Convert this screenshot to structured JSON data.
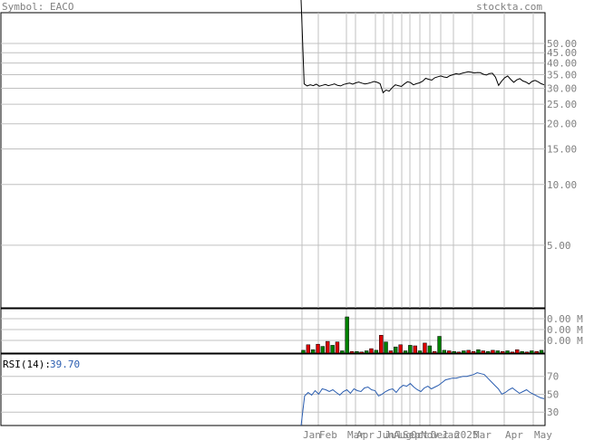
{
  "header": {
    "symbol_label": "Symbol: EACO",
    "site": "stockta.com"
  },
  "colors": {
    "background": "#ffffff",
    "frame": "#000000",
    "grid": "#c0c0c0",
    "text_gray": "#808080",
    "price_line": "#000000",
    "vol_up": "#008000",
    "vol_down": "#dd0000",
    "rsi_line": "#2a5db0"
  },
  "chart_data": [
    {
      "type": "line",
      "panel": "price",
      "y_scale": "log",
      "ylim": [
        2.5,
        50
      ],
      "yticks": [
        "50.00",
        "45.00",
        "40.00",
        "35.00",
        "30.00",
        "25.00",
        "20.00",
        "15.00",
        "10.00",
        "5.00"
      ],
      "y_values": [
        50,
        45,
        40,
        35,
        30,
        25,
        20,
        15,
        10,
        5
      ],
      "x_labels": [
        "Jan",
        "Feb",
        "Mar",
        "Apr",
        "Jun",
        "Jul",
        "Aug",
        "Sep",
        "Oct",
        "Nov",
        "Dec",
        "Jan",
        "2025",
        "Mar",
        "Apr",
        "May"
      ],
      "series": [
        {
          "values": [
            1000,
            31.5,
            30.8,
            31.2,
            30.9,
            31.4,
            30.7,
            31.0,
            31.3,
            30.9,
            31.2,
            31.5,
            31.0,
            30.8,
            31.3,
            31.6,
            31.8,
            31.4,
            31.9,
            32.2,
            31.8,
            31.5,
            31.7,
            32.0,
            32.4,
            32.1,
            31.6,
            28.5,
            29.4,
            29.0,
            30.2,
            31.2,
            30.9,
            30.6,
            31.5,
            32.3,
            32.0,
            31.2,
            31.6,
            31.9,
            32.5,
            33.6,
            33.2,
            32.9,
            33.8,
            34.2,
            34.5,
            34.1,
            33.9,
            34.6,
            35.0,
            35.4,
            35.2,
            35.6,
            35.9,
            36.2,
            36.0,
            35.7,
            35.9,
            35.8,
            35.2,
            34.9,
            35.5,
            35.6,
            34.0,
            31.0,
            32.5,
            33.8,
            34.5,
            33.2,
            32.1,
            33.0,
            33.5,
            32.6,
            32.2,
            31.5,
            32.4,
            32.8,
            32.3,
            31.6,
            31.2
          ]
        }
      ]
    },
    {
      "type": "bar",
      "panel": "volume",
      "yticks": [
        "0.00 M",
        "0.00 M",
        "0.00 M"
      ],
      "values": [
        0.5,
        1.5,
        0.6,
        1.6,
        1.2,
        2.1,
        1.4,
        2.0,
        0.4,
        6.5,
        0.3,
        0.3,
        0.2,
        0.4,
        0.8,
        0.5,
        3.2,
        2.0,
        0.4,
        1.1,
        1.5,
        0.4,
        1.4,
        1.3,
        0.4,
        1.8,
        1.3,
        0.3,
        3.0,
        0.5,
        0.4,
        0.3,
        0.2,
        0.4,
        0.5,
        0.3,
        0.6,
        0.4,
        0.3,
        0.5,
        0.4,
        0.3,
        0.4,
        0.2,
        0.6,
        0.3,
        0.2,
        0.4,
        0.3,
        0.5
      ],
      "up": [
        true,
        false,
        true,
        false,
        true,
        false,
        true,
        false,
        true,
        true,
        false,
        true,
        false,
        true,
        false,
        true,
        false,
        true,
        false,
        true,
        false,
        true,
        true,
        false,
        true,
        false,
        true,
        false,
        true,
        true,
        false,
        true,
        false,
        true,
        false,
        false,
        true,
        false,
        true,
        false,
        true,
        false,
        true,
        false,
        false,
        true,
        false,
        true,
        false,
        true
      ]
    },
    {
      "type": "line",
      "panel": "rsi",
      "label": "RSI(14):",
      "last_value": "39.70",
      "ylim": [
        15,
        95
      ],
      "yticks": [
        "70",
        "50",
        "30"
      ],
      "y_values": [
        70,
        50,
        30
      ],
      "series": [
        {
          "values": [
            0,
            48,
            52,
            49,
            54,
            50,
            56,
            55,
            53,
            55,
            52,
            49,
            53,
            55,
            51,
            56,
            54,
            53,
            57,
            58,
            55,
            54,
            48,
            50,
            53,
            55,
            56,
            52,
            57,
            60,
            59,
            62,
            58,
            55,
            53,
            57,
            59,
            56,
            58,
            60,
            63,
            66,
            67,
            68,
            68,
            69,
            70,
            70,
            71,
            72,
            74,
            73,
            72,
            68,
            64,
            60,
            56,
            50,
            52,
            55,
            57,
            54,
            51,
            53,
            55,
            52,
            50,
            48,
            46,
            45
          ]
        }
      ]
    }
  ]
}
